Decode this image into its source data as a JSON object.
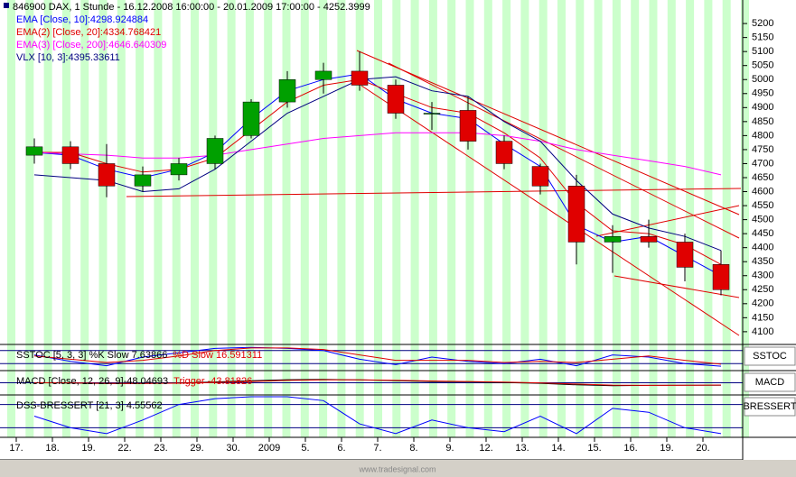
{
  "chart_data": {
    "type": "candlestick",
    "title": "846900 DAX, 1 Stunde - 16.12.2008 16:00:00 - 20.01.2009 17:00:00 - 4252.3999",
    "categories": [
      "17.",
      "18.",
      "19.",
      "22.",
      "23.",
      "29.",
      "30.",
      "2009",
      "5.",
      "6.",
      "7.",
      "8.",
      "9.",
      "12.",
      "13.",
      "14.",
      "15.",
      "16.",
      "19.",
      "20."
    ],
    "open": [
      4730,
      4760,
      4700,
      4620,
      4660,
      4700,
      4800,
      4920,
      5000,
      5030,
      4980,
      4880,
      4890,
      4780,
      4690,
      4620,
      4420,
      4440,
      4420,
      4340
    ],
    "high": [
      4790,
      4780,
      4770,
      4690,
      4720,
      4800,
      4930,
      5030,
      5060,
      5100,
      5000,
      4920,
      4940,
      4800,
      4700,
      4660,
      4480,
      4500,
      4450,
      4390
    ],
    "low": [
      4700,
      4680,
      4580,
      4600,
      4640,
      4680,
      4790,
      4900,
      4950,
      4960,
      4860,
      4820,
      4750,
      4680,
      4590,
      4340,
      4310,
      4400,
      4280,
      4230
    ],
    "close": [
      4760,
      4700,
      4620,
      4660,
      4700,
      4790,
      4920,
      5000,
      5030,
      4980,
      4880,
      4880,
      4780,
      4700,
      4620,
      4420,
      4440,
      4420,
      4330,
      4250
    ],
    "up_color": "#00a000",
    "down_color": "#e00000",
    "series": [
      {
        "name": "EMA [Close, 10]:4298.924884",
        "color": "#0000ff",
        "values": [
          4740,
          4730,
          4680,
          4650,
          4680,
          4740,
          4860,
          4960,
          5000,
          5020,
          4930,
          4880,
          4860,
          4770,
          4690,
          4480,
          4420,
          4440,
          4370,
          4300
        ]
      },
      {
        "name": "EMA(2) [Close, 20]:4334.768421",
        "color": "#e00000",
        "values": [
          4740,
          4740,
          4700,
          4670,
          4680,
          4720,
          4820,
          4920,
          4980,
          5000,
          4950,
          4900,
          4880,
          4810,
          4720,
          4560,
          4460,
          4450,
          4410,
          4340
        ]
      },
      {
        "name": "EMA(3) [Close, 200]:4646.640309",
        "color": "#ff00ff",
        "values": [
          4740,
          4735,
          4730,
          4720,
          4720,
          4730,
          4750,
          4770,
          4790,
          4800,
          4810,
          4810,
          4810,
          4800,
          4780,
          4750,
          4730,
          4710,
          4690,
          4660
        ]
      },
      {
        "name": "VLX [10, 3]:4395.33611",
        "color": "#000080",
        "values": [
          4660,
          4650,
          4640,
          4600,
          4610,
          4680,
          4780,
          4880,
          4940,
          5000,
          5010,
          4960,
          4940,
          4850,
          4780,
          4640,
          4520,
          4470,
          4440,
          4390
        ]
      }
    ],
    "ylim": [
      4061,
      5284
    ],
    "yticks": [
      4100,
      4150,
      4200,
      4250,
      4300,
      4350,
      4400,
      4450,
      4500,
      4550,
      4600,
      4650,
      4700,
      4750,
      4800,
      4850,
      4900,
      4950,
      5000,
      5050,
      5100,
      5150,
      5200
    ],
    "panels": [
      {
        "label": "SSTOC",
        "ylim": [
          0,
          100
        ],
        "levels": [
          20,
          80
        ],
        "series": [
          {
            "name": "SSTOC [5, 3, 3] %K Slow 7.63866",
            "color": "#0000ff",
            "values": [
              60,
              30,
              10,
              50,
              70,
              90,
              95,
              90,
              80,
              40,
              15,
              50,
              30,
              20,
              40,
              10,
              60,
              50,
              20,
              8
            ]
          },
          {
            "name": "%D Slow 16.591311",
            "color": "#e00000",
            "values": [
              55,
              40,
              25,
              35,
              55,
              80,
              92,
              92,
              85,
              60,
              35,
              35,
              35,
              25,
              30,
              25,
              40,
              55,
              35,
              17
            ]
          }
        ]
      },
      {
        "label": "MACD",
        "ylim": [
          -200,
          200
        ],
        "levels": [
          0
        ],
        "series": [
          {
            "name": "MACD [Close, 12, 26, 9]-48.04693",
            "color": "#000000",
            "values": [
              0,
              -5,
              -15,
              -12,
              -5,
              15,
              40,
              60,
              65,
              55,
              40,
              25,
              20,
              5,
              -10,
              -40,
              -55,
              -50,
              -48,
              -48
            ]
          },
          {
            "name": "Trigger -43.81826",
            "color": "#e00000",
            "values": [
              2,
              -2,
              -10,
              -12,
              -8,
              5,
              25,
              45,
              58,
              58,
              48,
              35,
              25,
              12,
              -2,
              -25,
              -45,
              -50,
              -48,
              -44
            ]
          }
        ]
      },
      {
        "label": "BRESSERT",
        "ylim": [
          0,
          100
        ],
        "levels": [
          20,
          80
        ],
        "series": [
          {
            "name": "DSS-BRESSERT [21, 3] 4.55562",
            "color": "#0000ff",
            "values": [
              50,
              20,
              5,
              40,
              80,
              95,
              100,
              100,
              90,
              30,
              5,
              40,
              20,
              10,
              50,
              5,
              70,
              60,
              20,
              5
            ]
          }
        ]
      }
    ],
    "footer": "www.tradesignal.com"
  }
}
